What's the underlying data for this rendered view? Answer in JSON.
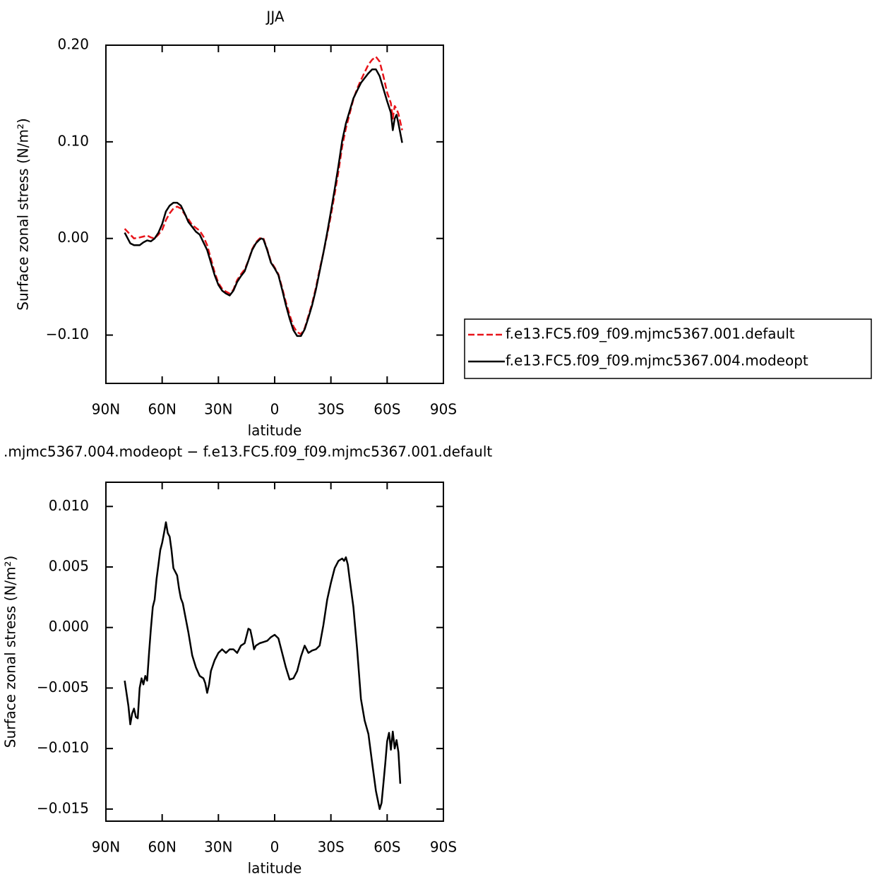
{
  "chart_data": [
    {
      "type": "line",
      "title": "JJA",
      "x_label": "latitude",
      "y_label": "Surface zonal stress (N/m²)",
      "x": [
        80,
        77,
        75,
        72,
        70,
        68,
        66,
        64,
        62,
        60,
        58,
        56,
        54,
        52,
        50,
        48,
        46,
        44,
        42,
        40,
        38,
        36,
        34,
        32,
        30,
        28,
        26,
        24,
        22,
        20,
        18,
        16,
        14,
        12,
        10,
        8,
        7,
        6,
        4,
        2,
        0,
        -2,
        -4,
        -6,
        -8,
        -10,
        -12,
        -14,
        -16,
        -18,
        -20,
        -22,
        -24,
        -26,
        -28,
        -30,
        -32,
        -34,
        -36,
        -38,
        -40,
        -42,
        -44,
        -46,
        -48,
        -50,
        -52,
        -54,
        -56,
        -58,
        -60,
        -62,
        -63,
        -64,
        -65,
        -66,
        -68
      ],
      "series": [
        {
          "name": "f.e13.FC5.f09_f09.mjmc5367.001.default",
          "color": "#e8141a",
          "dashed": true,
          "values": [
            0.01,
            0.004,
            0.0,
            0.001,
            0.002,
            0.003,
            0.001,
            0.0,
            0.004,
            0.009,
            0.019,
            0.026,
            0.031,
            0.033,
            0.031,
            0.025,
            0.02,
            0.014,
            0.011,
            0.008,
            0.002,
            -0.007,
            -0.021,
            -0.035,
            -0.046,
            -0.052,
            -0.055,
            -0.057,
            -0.053,
            -0.043,
            -0.037,
            -0.032,
            -0.023,
            -0.011,
            -0.004,
            0.0,
            0.001,
            0.0,
            -0.011,
            -0.024,
            -0.03,
            -0.037,
            -0.051,
            -0.066,
            -0.079,
            -0.091,
            -0.097,
            -0.099,
            -0.093,
            -0.08,
            -0.067,
            -0.051,
            -0.032,
            -0.015,
            0.004,
            0.024,
            0.046,
            0.069,
            0.095,
            0.114,
            0.129,
            0.144,
            0.155,
            0.164,
            0.172,
            0.18,
            0.185,
            0.188,
            0.183,
            0.168,
            0.151,
            0.14,
            0.124,
            0.137,
            0.134,
            0.129,
            0.112
          ]
        },
        {
          "name": "f.e13.FC5.f09_f09.mjmc5367.004.modeopt",
          "color": "#000000",
          "dashed": false,
          "values": [
            0.006,
            -0.005,
            -0.007,
            -0.007,
            -0.004,
            -0.002,
            -0.003,
            0.0,
            0.006,
            0.015,
            0.028,
            0.034,
            0.037,
            0.037,
            0.034,
            0.026,
            0.017,
            0.012,
            0.007,
            0.004,
            -0.004,
            -0.012,
            -0.025,
            -0.038,
            -0.048,
            -0.054,
            -0.057,
            -0.059,
            -0.054,
            -0.045,
            -0.039,
            -0.034,
            -0.023,
            -0.012,
            -0.005,
            -0.001,
            0.0,
            -0.001,
            -0.012,
            -0.025,
            -0.031,
            -0.038,
            -0.053,
            -0.069,
            -0.083,
            -0.095,
            -0.101,
            -0.101,
            -0.094,
            -0.082,
            -0.069,
            -0.053,
            -0.034,
            -0.015,
            0.006,
            0.028,
            0.051,
            0.075,
            0.101,
            0.119,
            0.132,
            0.145,
            0.153,
            0.161,
            0.166,
            0.171,
            0.175,
            0.175,
            0.168,
            0.155,
            0.142,
            0.13,
            0.112,
            0.124,
            0.128,
            0.119,
            0.099
          ]
        }
      ],
      "xlim": [
        90,
        -90
      ],
      "xticks": [
        {
          "value": 90,
          "label": "90N"
        },
        {
          "value": 60,
          "label": "60N"
        },
        {
          "value": 30,
          "label": "30N"
        },
        0,
        {
          "value": -30,
          "label": "30S"
        },
        {
          "value": -60,
          "label": "60S"
        },
        {
          "value": -90,
          "label": "90S"
        }
      ],
      "ylim": [
        -0.15,
        0.2
      ],
      "yticks": [
        {
          "value": -0.1,
          "label": "−0.10"
        },
        {
          "value": 0,
          "label": "0.00"
        },
        {
          "value": 0.1,
          "label": "0.10"
        },
        {
          "value": 0.2,
          "label": "0.20"
        }
      ]
    },
    {
      "type": "line",
      "title": ".mjmc5367.004.modeopt − f.e13.FC5.f09_f09.mjmc5367.001.default",
      "x_label": "latitude",
      "y_label": "Surface zonal stress (N/m²)",
      "x": [
        80,
        78,
        77,
        76,
        75,
        74,
        73,
        72,
        71,
        70,
        69,
        68,
        67,
        66,
        65,
        64,
        63,
        62,
        61,
        60,
        59,
        58,
        57,
        56,
        55,
        54,
        53,
        52,
        51,
        50,
        49,
        48,
        46,
        44,
        42,
        40,
        38,
        37,
        36,
        35,
        34,
        32,
        30,
        28,
        26,
        24,
        22,
        20,
        18,
        16,
        14,
        13,
        12,
        11,
        10,
        8,
        6,
        4,
        2,
        0,
        -2,
        -4,
        -6,
        -8,
        -10,
        -12,
        -14,
        -16,
        -18,
        -20,
        -22,
        -24,
        -26,
        -28,
        -30,
        -32,
        -34,
        -36,
        -37,
        -38,
        -39,
        -40,
        -42,
        -44,
        -46,
        -48,
        -50,
        -52,
        -54,
        -56,
        -57,
        -58,
        -59,
        -60,
        -61,
        -62,
        -63,
        -64,
        -65,
        -66,
        -67
      ],
      "series": [
        {
          "color": "#000000",
          "dashed": false,
          "values": [
            -0.0044,
            -0.0065,
            -0.008,
            -0.0071,
            -0.0067,
            -0.0074,
            -0.0075,
            -0.005,
            -0.0042,
            -0.0047,
            -0.004,
            -0.0044,
            -0.0021,
            -0.0001,
            0.0017,
            0.0023,
            0.004,
            0.0052,
            0.0064,
            0.007,
            0.0078,
            0.0087,
            0.0078,
            0.0075,
            0.0064,
            0.0049,
            0.0046,
            0.0043,
            0.0032,
            0.0024,
            0.002,
            0.0012,
            -0.0004,
            -0.0023,
            -0.0033,
            -0.004,
            -0.0042,
            -0.0046,
            -0.0054,
            -0.0047,
            -0.0036,
            -0.0027,
            -0.0021,
            -0.0018,
            -0.0021,
            -0.0018,
            -0.0018,
            -0.0021,
            -0.0015,
            -0.0013,
            -0.0001,
            -0.0002,
            -0.0009,
            -0.0018,
            -0.0015,
            -0.0013,
            -0.0012,
            -0.0011,
            -0.0008,
            -0.0006,
            -0.0009,
            -0.0021,
            -0.0033,
            -0.0043,
            -0.0042,
            -0.0036,
            -0.0024,
            -0.0015,
            -0.0021,
            -0.0019,
            -0.0018,
            -0.0015,
            0.0002,
            0.0023,
            0.0037,
            0.0049,
            0.0055,
            0.0057,
            0.0055,
            0.0058,
            0.0052,
            0.004,
            0.0017,
            -0.0018,
            -0.0059,
            -0.0077,
            -0.0088,
            -0.0112,
            -0.0135,
            -0.015,
            -0.0145,
            -0.0129,
            -0.0112,
            -0.0094,
            -0.0087,
            -0.0101,
            -0.0086,
            -0.01,
            -0.0093,
            -0.0103,
            -0.0129
          ]
        }
      ],
      "xlim": [
        90,
        -90
      ],
      "xticks": [
        {
          "value": 90,
          "label": "90N"
        },
        {
          "value": 60,
          "label": "60N"
        },
        {
          "value": 30,
          "label": "30N"
        },
        0,
        {
          "value": -30,
          "label": "30S"
        },
        {
          "value": -60,
          "label": "60S"
        },
        {
          "value": -90,
          "label": "90S"
        }
      ],
      "ylim": [
        -0.016,
        0.012
      ],
      "yticks": [
        {
          "value": -0.015,
          "label": "−0.015"
        },
        {
          "value": -0.01,
          "label": "−0.010"
        },
        {
          "value": -0.005,
          "label": "−0.005"
        },
        {
          "value": 0,
          "label": "0.000"
        },
        {
          "value": 0.005,
          "label": "0.005"
        },
        {
          "value": 0.01,
          "label": "0.010"
        }
      ]
    }
  ]
}
